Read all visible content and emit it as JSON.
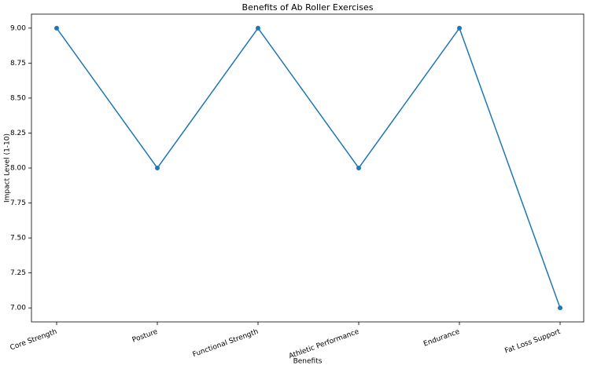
{
  "chart_data": {
    "type": "line",
    "title": "Benefits of Ab Roller Exercises",
    "x_label": "Benefits",
    "y_label": "Impact Level (1-10)",
    "categories": [
      "Core Strength",
      "Posture",
      "Functional Strength",
      "Athletic Performance",
      "Endurance",
      "Fat Loss Support"
    ],
    "values": [
      9,
      8,
      9,
      8,
      9,
      7
    ],
    "color": "#1f77b4",
    "ylim": [
      6.9,
      9.1
    ],
    "yticks": [
      {
        "value": 7,
        "label": "7.00"
      },
      {
        "value": 7.25,
        "label": "7.25"
      },
      {
        "value": 7.5,
        "label": "7.50"
      },
      {
        "value": 7.75,
        "label": "7.75"
      },
      {
        "value": 8,
        "label": "8.00"
      },
      {
        "value": 8.25,
        "label": "8.25"
      },
      {
        "value": 8.5,
        "label": "8.50"
      },
      {
        "value": 8.75,
        "label": "8.75"
      },
      {
        "value": 9,
        "label": "9.00"
      }
    ],
    "grid": false
  }
}
